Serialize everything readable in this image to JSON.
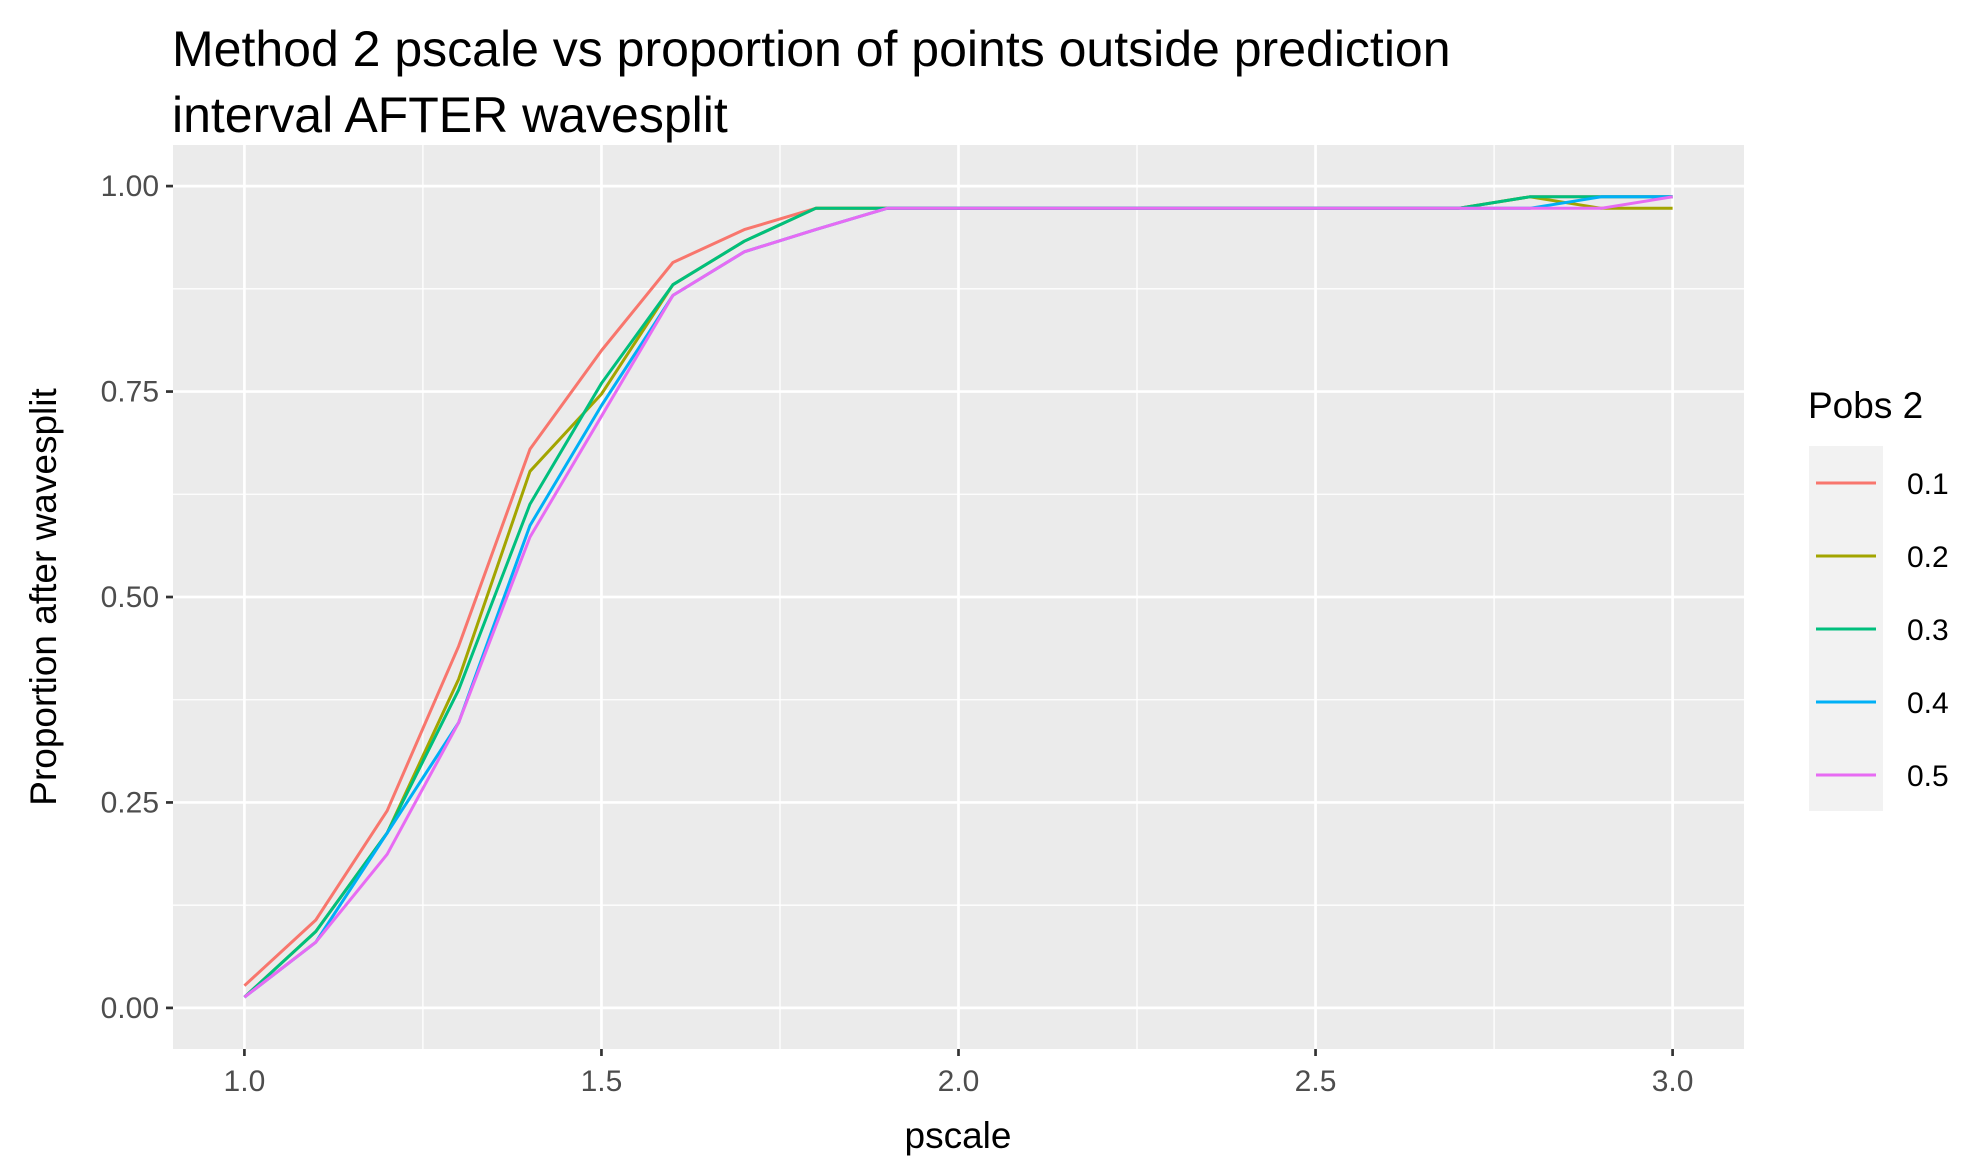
{
  "chart_data": {
    "type": "line",
    "title_lines": [
      "Method 2 pscale vs proportion of points outside prediction",
      "interval AFTER wavesplit"
    ],
    "xlabel": "pscale",
    "ylabel": "Proportion after wavesplit",
    "xlim": [
      0.9,
      3.1
    ],
    "ylim": [
      -0.05,
      1.05
    ],
    "x_ticks": [
      1.0,
      1.5,
      2.0,
      2.5,
      3.0
    ],
    "x_tick_labels": [
      "1.0",
      "1.5",
      "2.0",
      "2.5",
      "3.0"
    ],
    "y_ticks": [
      0.0,
      0.25,
      0.5,
      0.75,
      1.0
    ],
    "y_tick_labels": [
      "0.00",
      "0.25",
      "0.50",
      "0.75",
      "1.00"
    ],
    "x": [
      1.0,
      1.1,
      1.2,
      1.3,
      1.4,
      1.5,
      1.6,
      1.7,
      1.8,
      1.9,
      2.0,
      2.1,
      2.2,
      2.3,
      2.4,
      2.5,
      2.6,
      2.7,
      2.8,
      2.9,
      3.0
    ],
    "legend": {
      "title": "Pobs 2",
      "position": "right"
    },
    "series": [
      {
        "name": "0.1",
        "color": "#F8766D",
        "values": [
          0.027,
          0.107,
          0.24,
          0.44,
          0.68,
          0.8,
          0.907,
          0.947,
          0.973,
          0.973,
          0.973,
          0.973,
          0.973,
          0.973,
          0.973,
          0.973,
          0.973,
          0.973,
          0.987,
          0.987,
          0.987
        ]
      },
      {
        "name": "0.2",
        "color": "#A3A500",
        "values": [
          0.013,
          0.093,
          0.213,
          0.4,
          0.653,
          0.747,
          0.88,
          0.933,
          0.973,
          0.973,
          0.973,
          0.973,
          0.973,
          0.973,
          0.973,
          0.973,
          0.973,
          0.973,
          0.987,
          0.973,
          0.973
        ]
      },
      {
        "name": "0.3",
        "color": "#00BF7D",
        "values": [
          0.013,
          0.093,
          0.213,
          0.387,
          0.613,
          0.76,
          0.88,
          0.933,
          0.973,
          0.973,
          0.973,
          0.973,
          0.973,
          0.973,
          0.973,
          0.973,
          0.973,
          0.973,
          0.987,
          0.987,
          0.987
        ]
      },
      {
        "name": "0.4",
        "color": "#00B0F6",
        "values": [
          0.013,
          0.08,
          0.213,
          0.347,
          0.587,
          0.733,
          0.867,
          0.92,
          0.947,
          0.973,
          0.973,
          0.973,
          0.973,
          0.973,
          0.973,
          0.973,
          0.973,
          0.973,
          0.973,
          0.987,
          0.987
        ]
      },
      {
        "name": "0.5",
        "color": "#E76BF3",
        "values": [
          0.013,
          0.08,
          0.187,
          0.347,
          0.573,
          0.72,
          0.867,
          0.92,
          0.947,
          0.973,
          0.973,
          0.973,
          0.973,
          0.973,
          0.973,
          0.973,
          0.973,
          0.973,
          0.973,
          0.973,
          0.987
        ]
      }
    ],
    "colors": {
      "panel": "#EBEBEB",
      "grid": "#FFFFFF",
      "legend_key_bg": "#F2F2F2"
    }
  }
}
